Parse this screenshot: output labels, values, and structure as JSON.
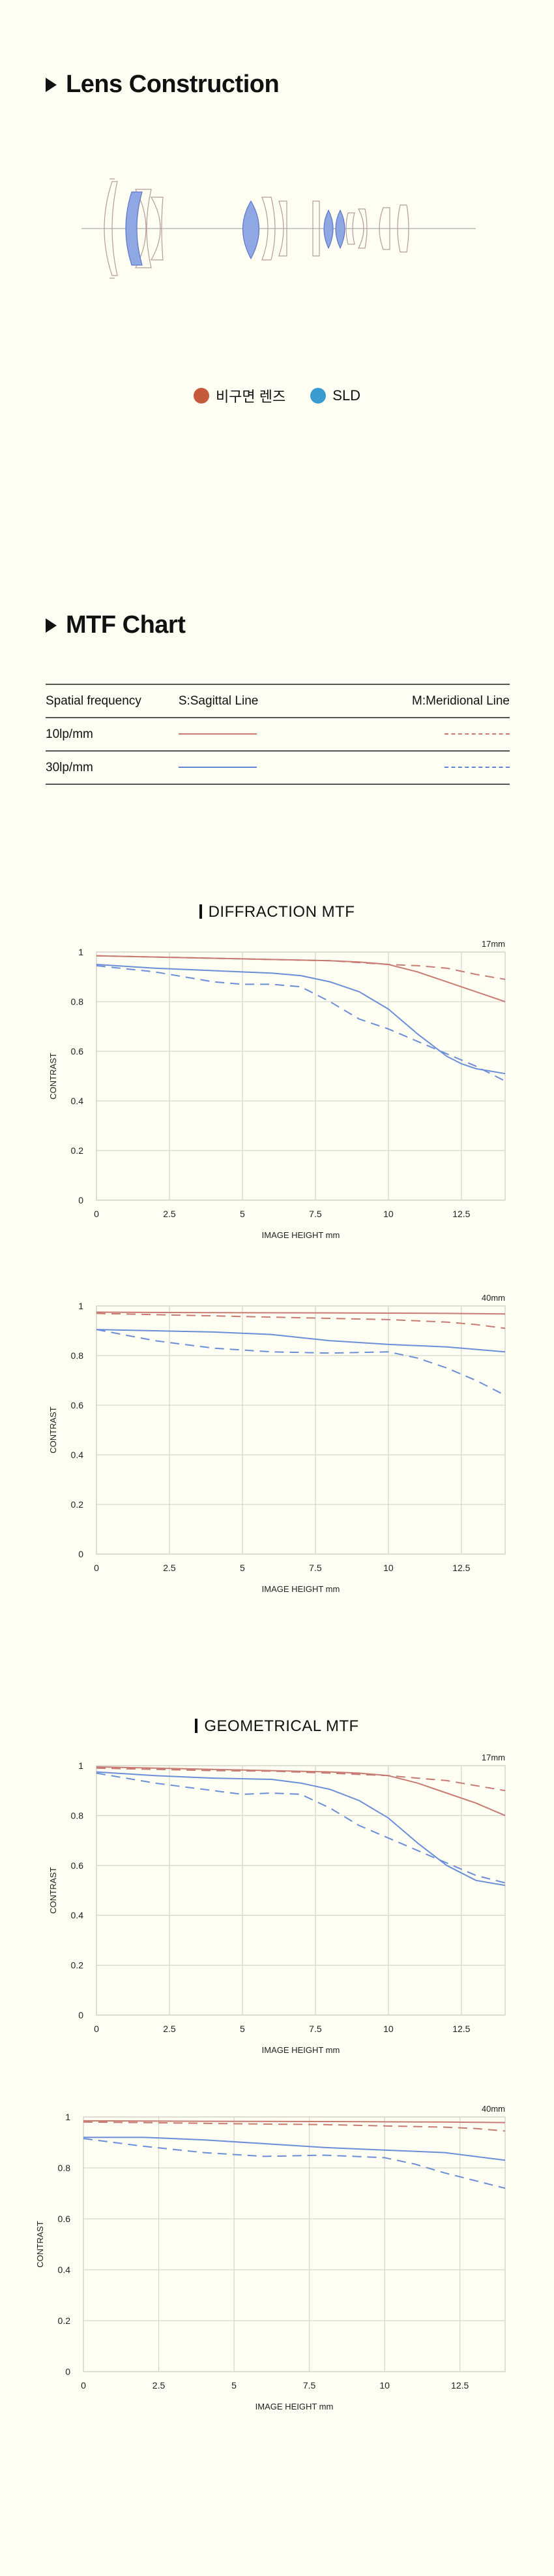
{
  "lens_construction": {
    "title": "Lens Construction",
    "legend": [
      {
        "label": "비구면 렌즈",
        "color": "#c55a3c"
      },
      {
        "label": "SLD",
        "color": "#3a9bd0"
      }
    ]
  },
  "mtf": {
    "title": "MTF Chart",
    "table": {
      "headers": [
        "Spatial frequency",
        "S:Sagittal Line",
        "M:Meridional Line"
      ],
      "rows": [
        {
          "label": "10lp/mm",
          "color": "#c77b73"
        },
        {
          "label": "30lp/mm",
          "color": "#5f86d6"
        }
      ]
    },
    "diffraction_title": "DIFFRACTION MTF",
    "geometrical_title": "GEOMETRICAL MTF"
  },
  "colors": {
    "red": "#c77b73",
    "blue": "#6a8ed8",
    "grid": "#d7d7cc"
  },
  "chart_data": [
    {
      "type": "line",
      "group": "DIFFRACTION MTF",
      "focal": "17mm",
      "xlabel": "IMAGE HEIGHT  mm",
      "ylabel": "CONTRAST",
      "xlim": [
        0,
        14
      ],
      "ylim": [
        0,
        1
      ],
      "xticks": [
        0,
        2.5,
        5,
        7.5,
        10,
        12.5
      ],
      "yticks": [
        0,
        0.2,
        0.4,
        0.6,
        0.8,
        1
      ],
      "series": [
        {
          "freq": "10lp/mm",
          "line": "S",
          "x": [
            0,
            2,
            4,
            6,
            8,
            9,
            10,
            11,
            12,
            13,
            14
          ],
          "y": [
            0.985,
            0.98,
            0.975,
            0.97,
            0.965,
            0.96,
            0.95,
            0.92,
            0.88,
            0.84,
            0.8
          ]
        },
        {
          "freq": "10lp/mm",
          "line": "M",
          "x": [
            0,
            2,
            4,
            6,
            8,
            10,
            11,
            12,
            13,
            14
          ],
          "y": [
            0.985,
            0.98,
            0.975,
            0.97,
            0.965,
            0.95,
            0.945,
            0.935,
            0.91,
            0.89
          ]
        },
        {
          "freq": "30lp/mm",
          "line": "S",
          "x": [
            0,
            2,
            4,
            6,
            7,
            8,
            9,
            10,
            11,
            12,
            12.5,
            13,
            14
          ],
          "y": [
            0.95,
            0.935,
            0.925,
            0.915,
            0.905,
            0.88,
            0.84,
            0.77,
            0.67,
            0.58,
            0.55,
            0.53,
            0.51
          ]
        },
        {
          "freq": "30lp/mm",
          "line": "M",
          "x": [
            0,
            2,
            4,
            5,
            6,
            7,
            8,
            9,
            10,
            11,
            12,
            13,
            14
          ],
          "y": [
            0.945,
            0.92,
            0.88,
            0.87,
            0.87,
            0.86,
            0.8,
            0.73,
            0.69,
            0.64,
            0.59,
            0.54,
            0.48
          ]
        }
      ]
    },
    {
      "type": "line",
      "group": "DIFFRACTION MTF",
      "focal": "40mm",
      "xlabel": "IMAGE HEIGHT  mm",
      "ylabel": "CONTRAST",
      "xlim": [
        0,
        14
      ],
      "ylim": [
        0,
        1
      ],
      "xticks": [
        0,
        2.5,
        5,
        7.5,
        10,
        12.5
      ],
      "yticks": [
        0,
        0.2,
        0.4,
        0.6,
        0.8,
        1
      ],
      "series": [
        {
          "freq": "10lp/mm",
          "line": "S",
          "x": [
            0,
            4,
            8,
            12,
            14
          ],
          "y": [
            0.975,
            0.973,
            0.972,
            0.97,
            0.968
          ]
        },
        {
          "freq": "10lp/mm",
          "line": "M",
          "x": [
            0,
            2,
            4,
            6,
            8,
            10,
            12,
            13,
            14
          ],
          "y": [
            0.97,
            0.965,
            0.96,
            0.955,
            0.95,
            0.945,
            0.935,
            0.925,
            0.91
          ]
        },
        {
          "freq": "30lp/mm",
          "line": "S",
          "x": [
            0,
            2,
            4,
            6,
            8,
            10,
            12,
            14
          ],
          "y": [
            0.905,
            0.9,
            0.895,
            0.885,
            0.86,
            0.845,
            0.835,
            0.815
          ]
        },
        {
          "freq": "30lp/mm",
          "line": "M",
          "x": [
            0,
            2,
            4,
            6,
            8,
            10,
            11,
            12,
            13,
            14
          ],
          "y": [
            0.905,
            0.86,
            0.83,
            0.815,
            0.81,
            0.815,
            0.79,
            0.75,
            0.7,
            0.64
          ]
        }
      ]
    },
    {
      "type": "line",
      "group": "GEOMETRICAL MTF",
      "focal": "17mm",
      "xlabel": "IMAGE HEIGHT  mm",
      "ylabel": "CONTRAST",
      "xlim": [
        0,
        14
      ],
      "ylim": [
        0,
        1
      ],
      "xticks": [
        0,
        2.5,
        5,
        7.5,
        10,
        12.5
      ],
      "yticks": [
        0,
        0.2,
        0.4,
        0.6,
        0.8,
        1
      ],
      "series": [
        {
          "freq": "10lp/mm",
          "line": "S",
          "x": [
            0,
            2,
            4,
            6,
            8,
            9,
            10,
            11,
            12,
            13,
            14
          ],
          "y": [
            0.995,
            0.99,
            0.985,
            0.98,
            0.975,
            0.97,
            0.96,
            0.93,
            0.89,
            0.85,
            0.8
          ]
        },
        {
          "freq": "10lp/mm",
          "line": "M",
          "x": [
            0,
            2,
            4,
            6,
            8,
            10,
            12,
            13,
            14
          ],
          "y": [
            0.99,
            0.985,
            0.98,
            0.978,
            0.97,
            0.96,
            0.94,
            0.92,
            0.9
          ]
        },
        {
          "freq": "30lp/mm",
          "line": "S",
          "x": [
            0,
            2,
            4,
            6,
            7,
            8,
            9,
            10,
            11,
            12,
            12.5,
            13,
            14
          ],
          "y": [
            0.975,
            0.96,
            0.95,
            0.945,
            0.93,
            0.905,
            0.86,
            0.79,
            0.69,
            0.6,
            0.57,
            0.54,
            0.52
          ]
        },
        {
          "freq": "30lp/mm",
          "line": "M",
          "x": [
            0,
            2,
            4,
            5,
            6,
            7,
            8,
            9,
            10,
            11,
            12,
            13,
            14
          ],
          "y": [
            0.97,
            0.93,
            0.9,
            0.885,
            0.89,
            0.885,
            0.83,
            0.76,
            0.71,
            0.66,
            0.61,
            0.56,
            0.53
          ]
        }
      ]
    },
    {
      "type": "line",
      "group": "GEOMETRICAL MTF",
      "focal": "40mm",
      "xlabel": "IMAGE HEIGHT  mm",
      "ylabel": "CONTRAST",
      "xlim": [
        0,
        14
      ],
      "ylim": [
        0,
        1
      ],
      "xticks": [
        0,
        2.5,
        5,
        7.5,
        10,
        12.5
      ],
      "yticks": [
        0,
        0.2,
        0.4,
        0.6,
        0.8,
        1
      ],
      "series": [
        {
          "freq": "10lp/mm",
          "line": "S",
          "x": [
            0,
            4,
            8,
            12,
            14
          ],
          "y": [
            0.985,
            0.983,
            0.982,
            0.98,
            0.978
          ]
        },
        {
          "freq": "10lp/mm",
          "line": "M",
          "x": [
            0,
            2,
            4,
            6,
            8,
            10,
            12,
            13,
            14
          ],
          "y": [
            0.98,
            0.978,
            0.975,
            0.972,
            0.97,
            0.965,
            0.96,
            0.955,
            0.945
          ]
        },
        {
          "freq": "30lp/mm",
          "line": "S",
          "x": [
            0,
            2,
            4,
            6,
            8,
            10,
            12,
            14
          ],
          "y": [
            0.92,
            0.92,
            0.91,
            0.895,
            0.88,
            0.87,
            0.86,
            0.83
          ]
        },
        {
          "freq": "30lp/mm",
          "line": "M",
          "x": [
            0,
            2,
            4,
            6,
            8,
            10,
            11,
            12,
            13,
            14
          ],
          "y": [
            0.915,
            0.885,
            0.86,
            0.845,
            0.85,
            0.84,
            0.815,
            0.78,
            0.75,
            0.72
          ]
        }
      ]
    }
  ]
}
